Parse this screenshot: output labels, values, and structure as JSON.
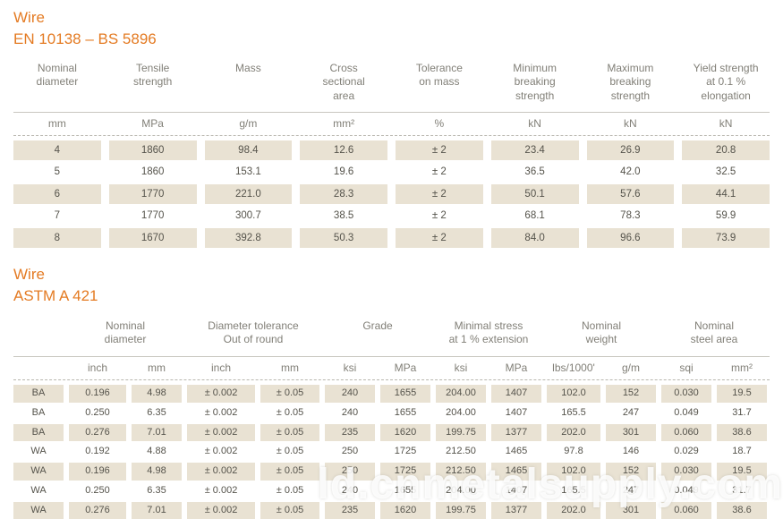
{
  "colors": {
    "accent": "#e47b23",
    "row_shade": "#e9e2d3"
  },
  "watermark": "ld.cnmetalsupply.com",
  "section1": {
    "title": "Wire",
    "subtitle": "EN 10138 – BS 5896",
    "table": {
      "headers": [
        "Nominal\ndiameter",
        "Tensile\nstrength",
        "Mass",
        "Cross\nsectional\narea",
        "Tolerance\non mass",
        "Minimum\nbreaking\nstrength",
        "Maximum\nbreaking\nstrength",
        "Yield strength\nat 0.1 %\nelongation"
      ],
      "units": [
        "mm",
        "MPa",
        "g/m",
        "mm²",
        "%",
        "kN",
        "kN",
        "kN"
      ],
      "rows": [
        [
          "4",
          "1860",
          "98.4",
          "12.6",
          "± 2",
          "23.4",
          "26.9",
          "20.8"
        ],
        [
          "5",
          "1860",
          "153.1",
          "19.6",
          "± 2",
          "36.5",
          "42.0",
          "32.5"
        ],
        [
          "6",
          "1770",
          "221.0",
          "28.3",
          "± 2",
          "50.1",
          "57.6",
          "44.1"
        ],
        [
          "7",
          "1770",
          "300.7",
          "38.5",
          "± 2",
          "68.1",
          "78.3",
          "59.9"
        ],
        [
          "8",
          "1670",
          "392.8",
          "50.3",
          "± 2",
          "84.0",
          "96.6",
          "73.9"
        ]
      ]
    }
  },
  "section2": {
    "title": "Wire",
    "subtitle": "ASTM A 421",
    "table": {
      "groups": [
        {
          "label": "",
          "span": 1
        },
        {
          "label": "Nominal\ndiameter",
          "span": 2
        },
        {
          "label": "Diameter tolerance\nOut of round",
          "span": 2
        },
        {
          "label": "Grade",
          "span": 2
        },
        {
          "label": "Minimal stress\nat 1 % extension",
          "span": 2
        },
        {
          "label": "Nominal\nweight",
          "span": 2
        },
        {
          "label": "Nominal\nsteel area",
          "span": 2
        }
      ],
      "units": [
        "",
        "inch",
        "mm",
        "inch",
        "mm",
        "ksi",
        "MPa",
        "ksi",
        "MPa",
        "lbs/1000'",
        "g/m",
        "sqi",
        "mm²"
      ],
      "rows": [
        [
          "BA",
          "0.196",
          "4.98",
          "± 0.002",
          "± 0.05",
          "240",
          "1655",
          "204.00",
          "1407",
          "102.0",
          "152",
          "0.030",
          "19.5"
        ],
        [
          "BA",
          "0.250",
          "6.35",
          "± 0.002",
          "± 0.05",
          "240",
          "1655",
          "204.00",
          "1407",
          "165.5",
          "247",
          "0.049",
          "31.7"
        ],
        [
          "BA",
          "0.276",
          "7.01",
          "± 0.002",
          "± 0.05",
          "235",
          "1620",
          "199.75",
          "1377",
          "202.0",
          "301",
          "0.060",
          "38.6"
        ],
        [
          "WA",
          "0.192",
          "4.88",
          "± 0.002",
          "± 0.05",
          "250",
          "1725",
          "212.50",
          "1465",
          "97.8",
          "146",
          "0.029",
          "18.7"
        ],
        [
          "WA",
          "0.196",
          "4.98",
          "± 0.002",
          "± 0.05",
          "250",
          "1725",
          "212.50",
          "1465",
          "102.0",
          "152",
          "0.030",
          "19.5"
        ],
        [
          "WA",
          "0.250",
          "6.35",
          "± 0.002",
          "± 0.05",
          "240",
          "1655",
          "204.00",
          "1407",
          "165.5",
          "247",
          "0.049",
          "31.7"
        ],
        [
          "WA",
          "0.276",
          "7.01",
          "± 0.002",
          "± 0.05",
          "235",
          "1620",
          "199.75",
          "1377",
          "202.0",
          "301",
          "0.060",
          "38.6"
        ]
      ]
    }
  }
}
